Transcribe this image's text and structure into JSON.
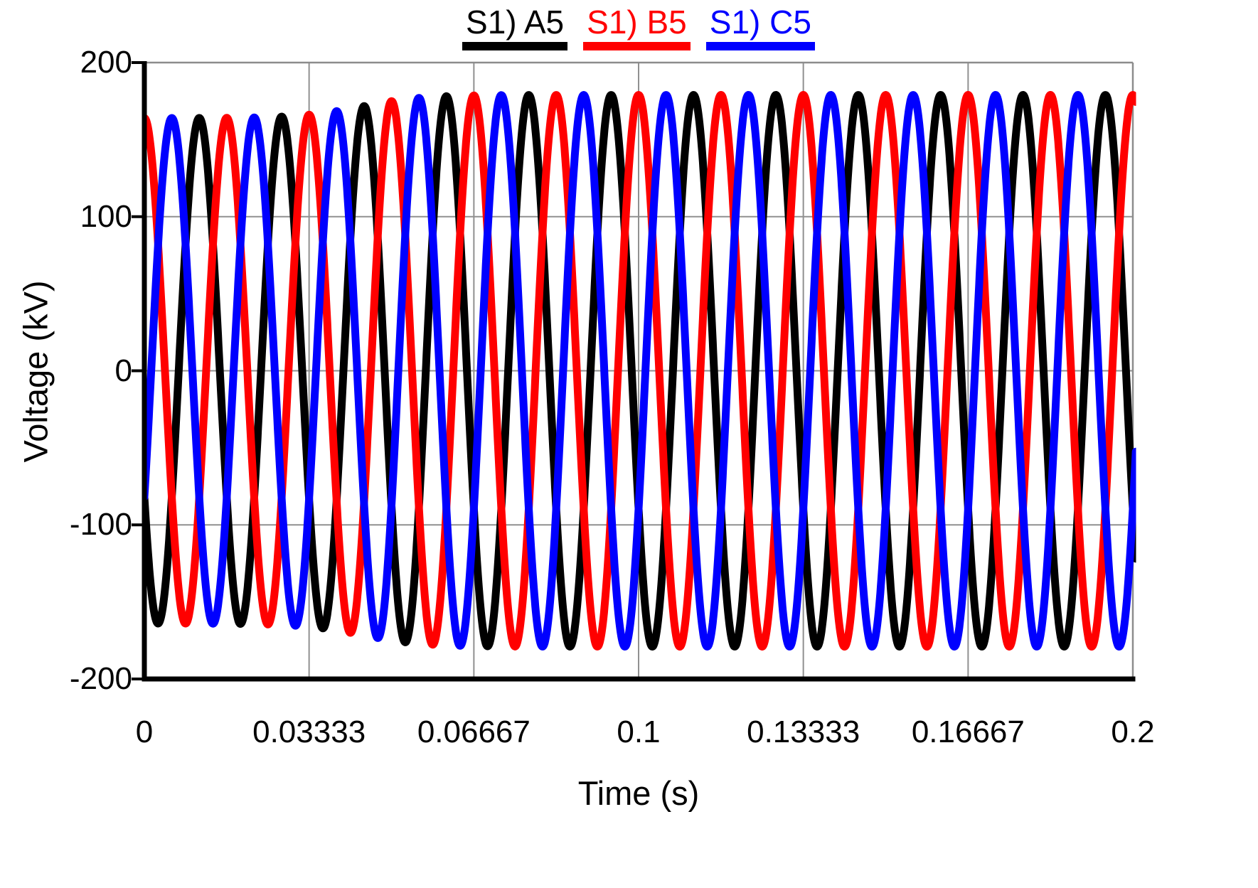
{
  "chart_data": {
    "type": "line",
    "title": "",
    "xlabel": "Time (s)",
    "ylabel": "Voltage (kV)",
    "xlim": [
      0,
      0.2
    ],
    "ylim": [
      -200,
      200
    ],
    "grid": true,
    "legend_position": "top-center",
    "x_ticks": {
      "values": [
        0,
        0.03333,
        0.06667,
        0.1,
        0.13333,
        0.16667,
        0.2
      ],
      "labels": [
        "0",
        "0.03333",
        "0.06667",
        "0.1",
        "0.13333",
        "0.16667",
        "0.2"
      ]
    },
    "y_ticks": {
      "values": [
        200,
        100,
        0,
        -100,
        -200
      ],
      "labels": [
        "200",
        "100",
        "0",
        "-100",
        "-200"
      ]
    },
    "series": [
      {
        "name": "S1) A5",
        "color": "#000000",
        "waveform": "cosine",
        "frequency_hz": 60,
        "phase_deg": -240
      },
      {
        "name": "S1) B5",
        "color": "#ff0000",
        "waveform": "cosine",
        "frequency_hz": 60,
        "phase_deg": 0
      },
      {
        "name": "S1) C5",
        "color": "#0000ff",
        "waveform": "cosine",
        "frequency_hz": 60,
        "phase_deg": -120
      }
    ],
    "envelope": {
      "model": "logistic",
      "amplitude_initial_kv": 164,
      "amplitude_steady_kv": 179,
      "transition_center_s": 0.044,
      "transition_width_s": 0.006
    },
    "t_draw_end_s": 0.2006,
    "axis_color": "#000000",
    "grid_color": "#909090",
    "border_color": "#8c8c8c"
  }
}
